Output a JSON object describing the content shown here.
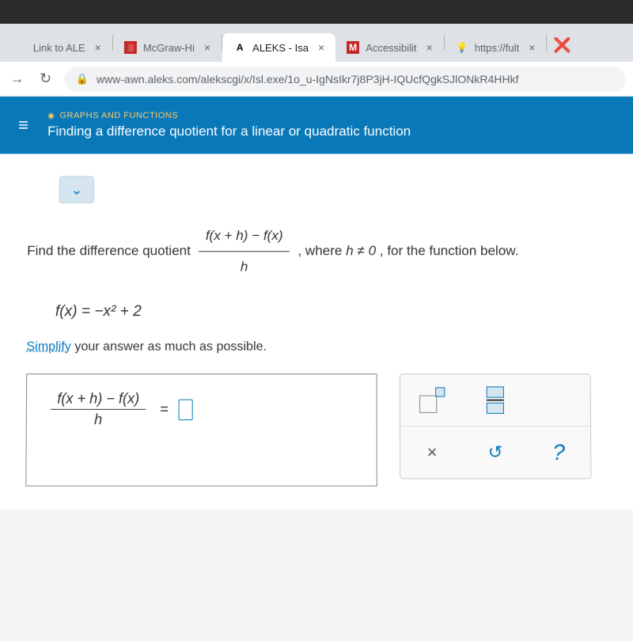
{
  "tabs": [
    {
      "favicon": "",
      "label": "Link to ALE"
    },
    {
      "favicon": "📕",
      "label": "McGraw-Hi"
    },
    {
      "favicon": "A",
      "label": "ALEKS - Isa",
      "active": true
    },
    {
      "favicon": "M",
      "label": "Accessibilit"
    },
    {
      "favicon": "💡",
      "label": "https://fult"
    }
  ],
  "close_glyph": "×",
  "extra_tab_close": "❌",
  "nav": {
    "reload": "↻",
    "forward": "→"
  },
  "url": {
    "lock": "🔒",
    "text": "www-awn.aleks.com/alekscgi/x/Isl.exe/1o_u-IgNsIkr7j8P3jH-IQUcfQgkSJlONkR4HHkf"
  },
  "header": {
    "menu": "≡",
    "breadcrumb": "GRAPHS AND FUNCTIONS",
    "title": "Finding a difference quotient for a linear or quadratic function"
  },
  "chevron": "⌄",
  "problem": {
    "lead": "Find the difference quotient ",
    "num": "f(x + h) − f(x)",
    "den": "h",
    "tail1": ", where ",
    "cond": "h ≠ 0",
    "tail2": ", for the function below."
  },
  "func": "f(x) = −x² + 2",
  "simplify": {
    "u": "Simplify",
    "rest": " your answer as much as possible."
  },
  "answer": {
    "num": "f(x + h) − f(x)",
    "den": "h",
    "eq": "="
  },
  "tools": {
    "times": "×",
    "undo": "↺",
    "help": "?"
  }
}
